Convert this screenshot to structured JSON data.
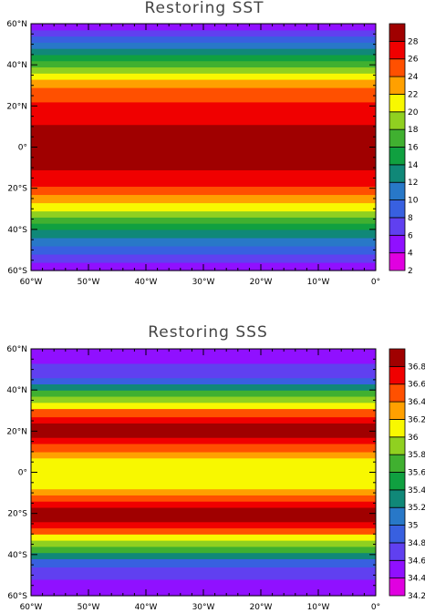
{
  "chart_data": [
    {
      "type": "heatmap",
      "title": "Restoring SST",
      "x_ticks": [
        "60°W",
        "50°W",
        "40°W",
        "30°W",
        "20°W",
        "10°W",
        "0°"
      ],
      "y_ticks": [
        "60°S",
        "40°S",
        "20°S",
        "0°",
        "20°N",
        "40°N",
        "60°N"
      ],
      "x_range": [
        -60,
        0
      ],
      "y_range": [
        -60,
        60
      ],
      "colorbar_labels": [
        "2",
        "4",
        "6",
        "8",
        "10",
        "12",
        "14",
        "16",
        "18",
        "20",
        "22",
        "24",
        "26",
        "28"
      ],
      "levels": [
        2,
        4,
        6,
        8,
        10,
        12,
        14,
        16,
        18,
        20,
        22,
        24,
        26,
        28
      ],
      "colors": [
        "#e000e0",
        "#9010ff",
        "#6040f0",
        "#3860e0",
        "#2878c8",
        "#108878",
        "#10a040",
        "#40b030",
        "#90d020",
        "#f8f800",
        "#ffa000",
        "#ff5000",
        "#f00000",
        "#a00000"
      ],
      "bands": [
        {
          "lat_from": -60,
          "lat_to": -56,
          "value": 3
        },
        {
          "lat_from": -56,
          "lat_to": -52,
          "value": 5
        },
        {
          "lat_from": -52,
          "lat_to": -48,
          "value": 7
        },
        {
          "lat_from": -48,
          "lat_to": -44,
          "value": 9
        },
        {
          "lat_from": -44,
          "lat_to": -40,
          "value": 11
        },
        {
          "lat_from": -40,
          "lat_to": -37,
          "value": 13
        },
        {
          "lat_from": -37,
          "lat_to": -34,
          "value": 15
        },
        {
          "lat_from": -34,
          "lat_to": -31,
          "value": 17
        },
        {
          "lat_from": -31,
          "lat_to": -27,
          "value": 19
        },
        {
          "lat_from": -27,
          "lat_to": -23,
          "value": 21
        },
        {
          "lat_from": -23,
          "lat_to": -19,
          "value": 23
        },
        {
          "lat_from": -19,
          "lat_to": -11,
          "value": 25
        },
        {
          "lat_from": -11,
          "lat_to": 11,
          "value": 27
        },
        {
          "lat_from": 11,
          "lat_to": 22,
          "value": 25
        },
        {
          "lat_from": 22,
          "lat_to": 29,
          "value": 23
        },
        {
          "lat_from": 29,
          "lat_to": 33,
          "value": 21
        },
        {
          "lat_from": 33,
          "lat_to": 36,
          "value": 19
        },
        {
          "lat_from": 36,
          "lat_to": 39,
          "value": 17
        },
        {
          "lat_from": 39,
          "lat_to": 42,
          "value": 15
        },
        {
          "lat_from": 42,
          "lat_to": 45,
          "value": 13
        },
        {
          "lat_from": 45,
          "lat_to": 48,
          "value": 11
        },
        {
          "lat_from": 48,
          "lat_to": 51,
          "value": 9
        },
        {
          "lat_from": 51,
          "lat_to": 54,
          "value": 7
        },
        {
          "lat_from": 54,
          "lat_to": 57,
          "value": 5
        },
        {
          "lat_from": 57,
          "lat_to": 60,
          "value": 3
        }
      ]
    },
    {
      "type": "heatmap",
      "title": "Restoring SSS",
      "x_ticks": [
        "60°W",
        "50°W",
        "40°W",
        "30°W",
        "20°W",
        "10°W",
        "0°"
      ],
      "y_ticks": [
        "60°S",
        "40°S",
        "20°S",
        "0°",
        "20°N",
        "40°N",
        "60°N"
      ],
      "x_range": [
        -60,
        0
      ],
      "y_range": [
        -60,
        60
      ],
      "colorbar_labels": [
        "34.2",
        "34.4",
        "34.6",
        "34.8",
        "35",
        "35.2",
        "35.4",
        "35.6",
        "35.8",
        "36",
        "36.2",
        "36.4",
        "36.6",
        "36.8"
      ],
      "levels": [
        34.2,
        34.4,
        34.6,
        34.8,
        35.0,
        35.2,
        35.4,
        35.6,
        35.8,
        36.0,
        36.2,
        36.4,
        36.6,
        36.8
      ],
      "colors": [
        "#e000e0",
        "#9010ff",
        "#6040f0",
        "#3860e0",
        "#2878c8",
        "#108878",
        "#10a040",
        "#40b030",
        "#90d020",
        "#f8f800",
        "#ffa000",
        "#ff5000",
        "#f00000",
        "#a00000"
      ],
      "bands": [
        {
          "lat_from": -60,
          "lat_to": -52,
          "value": 34.3
        },
        {
          "lat_from": -52,
          "lat_to": -46,
          "value": 34.5
        },
        {
          "lat_from": -46,
          "lat_to": -42,
          "value": 34.7
        },
        {
          "lat_from": -42,
          "lat_to": -39,
          "value": 35.1
        },
        {
          "lat_from": -39,
          "lat_to": -36,
          "value": 35.5
        },
        {
          "lat_from": -36,
          "lat_to": -33,
          "value": 35.7
        },
        {
          "lat_from": -33,
          "lat_to": -30,
          "value": 35.9
        },
        {
          "lat_from": -30,
          "lat_to": -27,
          "value": 36.3
        },
        {
          "lat_from": -27,
          "lat_to": -24,
          "value": 36.5
        },
        {
          "lat_from": -24,
          "lat_to": -17,
          "value": 36.9
        },
        {
          "lat_from": -17,
          "lat_to": -14,
          "value": 36.5
        },
        {
          "lat_from": -14,
          "lat_to": -11,
          "value": 36.3
        },
        {
          "lat_from": -11,
          "lat_to": -8,
          "value": 36.1
        },
        {
          "lat_from": -8,
          "lat_to": 7,
          "value": 35.9
        },
        {
          "lat_from": 7,
          "lat_to": 10,
          "value": 36.1
        },
        {
          "lat_from": 10,
          "lat_to": 14,
          "value": 36.3
        },
        {
          "lat_from": 14,
          "lat_to": 17,
          "value": 36.5
        },
        {
          "lat_from": 17,
          "lat_to": 24,
          "value": 36.9
        },
        {
          "lat_from": 24,
          "lat_to": 27,
          "value": 36.5
        },
        {
          "lat_from": 27,
          "lat_to": 31,
          "value": 36.3
        },
        {
          "lat_from": 31,
          "lat_to": 34,
          "value": 35.9
        },
        {
          "lat_from": 34,
          "lat_to": 37,
          "value": 35.7
        },
        {
          "lat_from": 37,
          "lat_to": 40,
          "value": 35.5
        },
        {
          "lat_from": 40,
          "lat_to": 43,
          "value": 35.1
        },
        {
          "lat_from": 43,
          "lat_to": 46,
          "value": 34.7
        },
        {
          "lat_from": 46,
          "lat_to": 53,
          "value": 34.5
        },
        {
          "lat_from": 53,
          "lat_to": 60,
          "value": 34.3
        }
      ]
    }
  ]
}
